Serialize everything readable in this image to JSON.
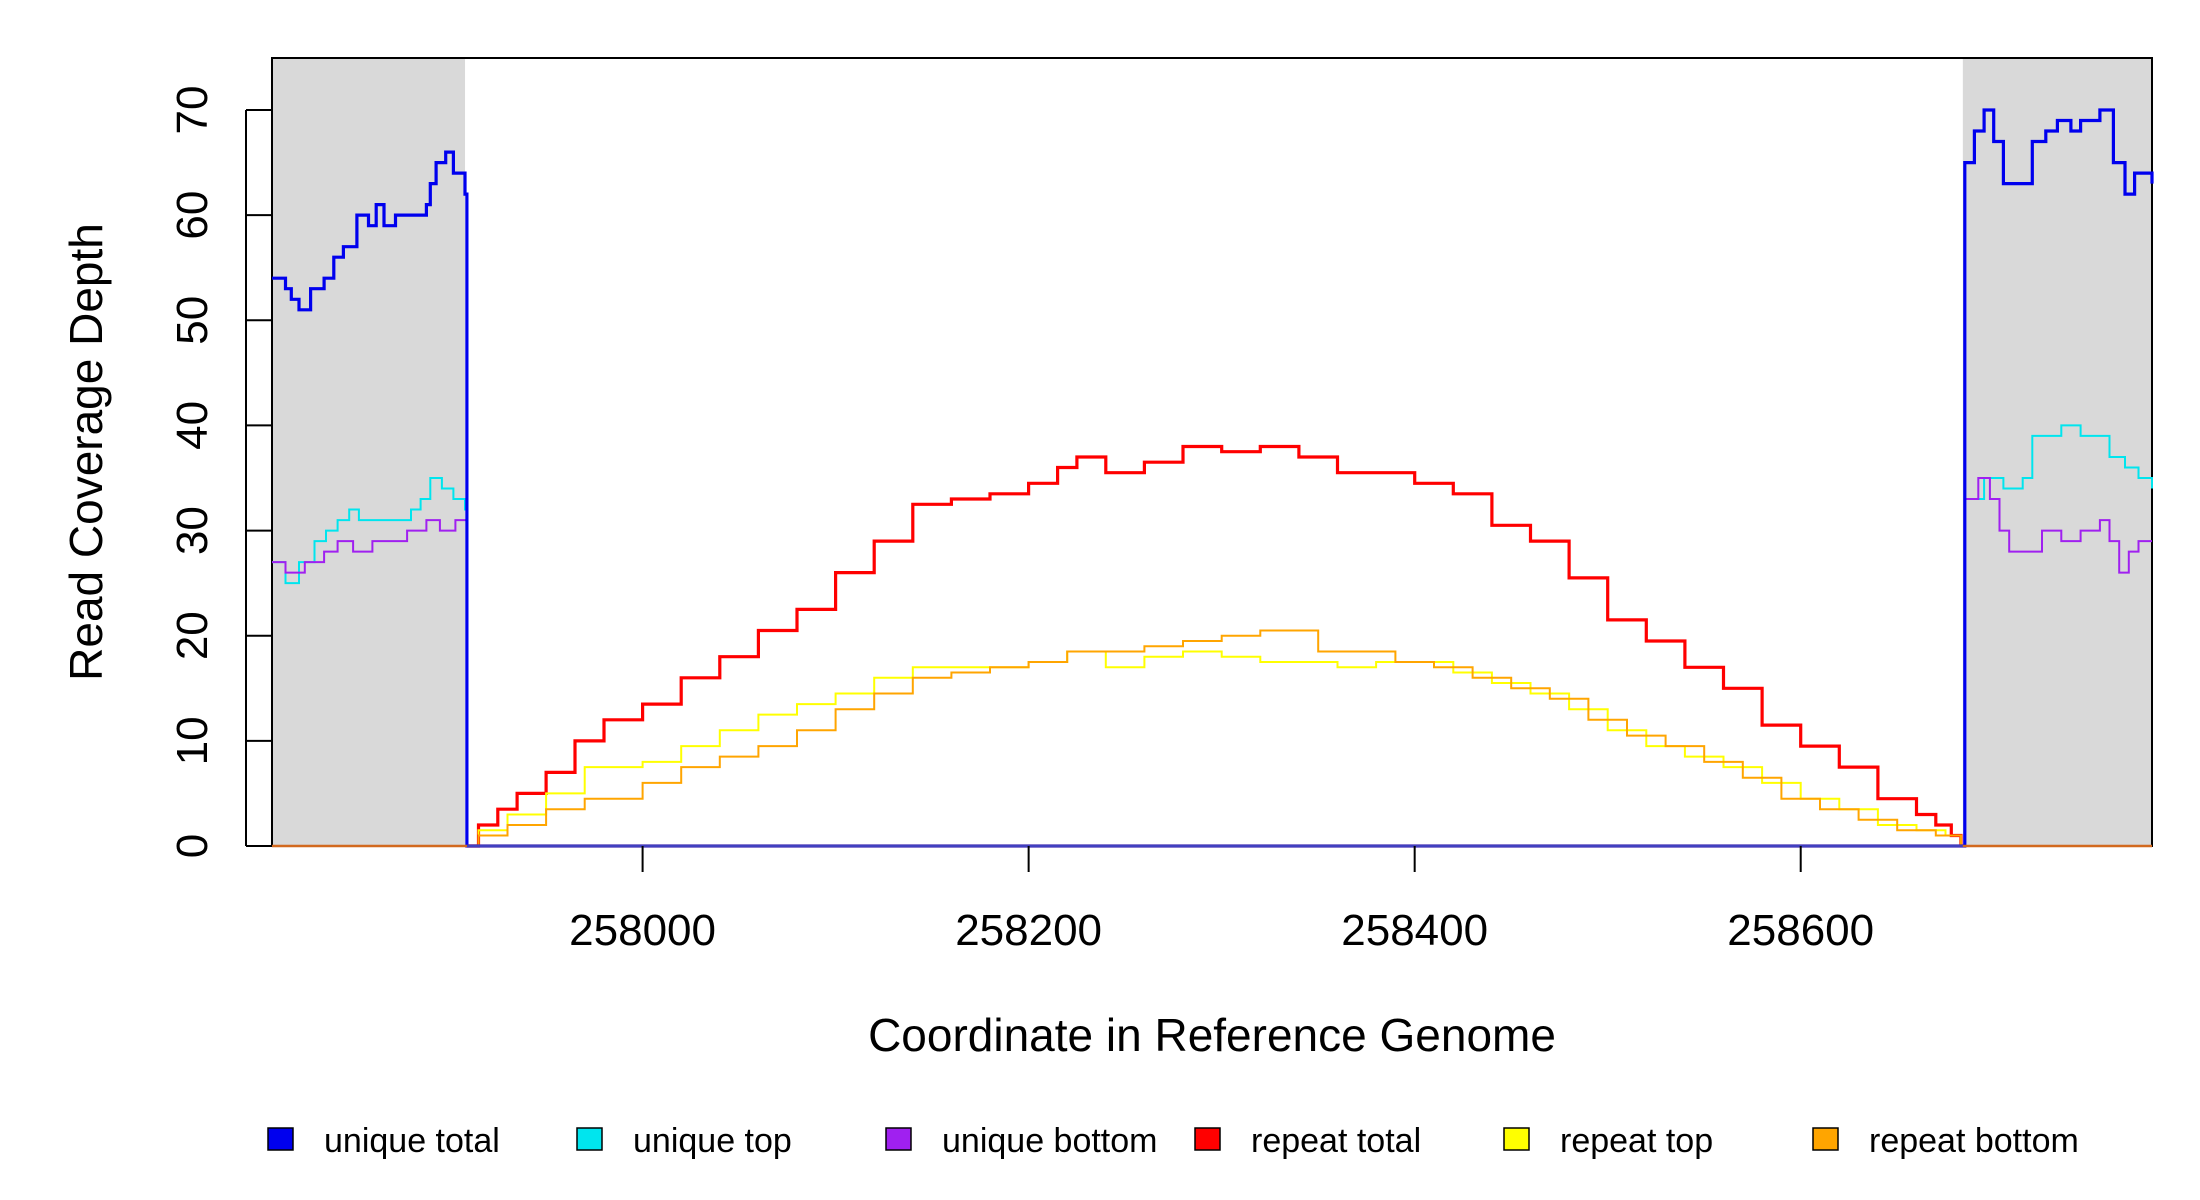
{
  "chart_data": {
    "type": "line",
    "title": "",
    "xlabel": "Coordinate in Reference Genome",
    "ylabel": "Read Coverage Depth",
    "xlim": [
      257808,
      258782
    ],
    "ylim": [
      0,
      75
    ],
    "x_ticks": [
      "258000",
      "258200",
      "258400",
      "258600"
    ],
    "x_tick_values": [
      258000,
      258200,
      258400,
      258600
    ],
    "y_ticks": [
      "0",
      "10",
      "20",
      "30",
      "40",
      "50",
      "60",
      "70"
    ],
    "y_tick_values": [
      0,
      10,
      20,
      30,
      40,
      50,
      60,
      70
    ],
    "grid": false,
    "legend_position": "bottom",
    "unique_regions": [
      [
        257808,
        257908
      ],
      [
        258684,
        258782
      ]
    ],
    "unique_region_color": "#d9d9d9",
    "series": [
      {
        "name": "unique total",
        "color": "#0000ee",
        "points": [
          [
            257808,
            54
          ],
          [
            257815,
            53
          ],
          [
            257818,
            52
          ],
          [
            257822,
            51
          ],
          [
            257828,
            53
          ],
          [
            257835,
            54
          ],
          [
            257840,
            56
          ],
          [
            257845,
            57
          ],
          [
            257852,
            60
          ],
          [
            257858,
            59
          ],
          [
            257862,
            61
          ],
          [
            257866,
            59
          ],
          [
            257872,
            60
          ],
          [
            257880,
            60
          ],
          [
            257888,
            61
          ],
          [
            257890,
            63
          ],
          [
            257893,
            65
          ],
          [
            257898,
            66
          ],
          [
            257902,
            64
          ],
          [
            257906,
            64
          ],
          [
            257908,
            62
          ],
          [
            257909,
            0
          ],
          [
            258684,
            0
          ],
          [
            258685,
            65
          ],
          [
            258690,
            68
          ],
          [
            258695,
            70
          ],
          [
            258700,
            67
          ],
          [
            258705,
            63
          ],
          [
            258715,
            63
          ],
          [
            258720,
            67
          ],
          [
            258727,
            68
          ],
          [
            258733,
            69
          ],
          [
            258740,
            68
          ],
          [
            258745,
            69
          ],
          [
            258755,
            70
          ],
          [
            258762,
            65
          ],
          [
            258768,
            62
          ],
          [
            258773,
            64
          ],
          [
            258782,
            63
          ]
        ]
      },
      {
        "name": "unique top",
        "color": "#00e5ee",
        "points": [
          [
            257808,
            27
          ],
          [
            257815,
            25
          ],
          [
            257822,
            27
          ],
          [
            257830,
            29
          ],
          [
            257836,
            30
          ],
          [
            257842,
            31
          ],
          [
            257848,
            32
          ],
          [
            257853,
            31
          ],
          [
            257862,
            31
          ],
          [
            257870,
            31
          ],
          [
            257880,
            32
          ],
          [
            257885,
            33
          ],
          [
            257890,
            35
          ],
          [
            257896,
            34
          ],
          [
            257902,
            33
          ],
          [
            257908,
            32
          ],
          [
            257909,
            0
          ],
          [
            258684,
            0
          ],
          [
            258685,
            33
          ],
          [
            258695,
            35
          ],
          [
            258705,
            34
          ],
          [
            258715,
            35
          ],
          [
            258720,
            39
          ],
          [
            258730,
            39
          ],
          [
            258735,
            40
          ],
          [
            258745,
            39
          ],
          [
            258752,
            39
          ],
          [
            258760,
            37
          ],
          [
            258768,
            36
          ],
          [
            258775,
            35
          ],
          [
            258782,
            34
          ]
        ]
      },
      {
        "name": "unique bottom",
        "color": "#a020f0",
        "points": [
          [
            257808,
            27
          ],
          [
            257815,
            26
          ],
          [
            257825,
            27
          ],
          [
            257835,
            28
          ],
          [
            257842,
            29
          ],
          [
            257850,
            28
          ],
          [
            257860,
            29
          ],
          [
            257870,
            29
          ],
          [
            257878,
            30
          ],
          [
            257884,
            30
          ],
          [
            257888,
            31
          ],
          [
            257895,
            30
          ],
          [
            257903,
            31
          ],
          [
            257908,
            31
          ],
          [
            257909,
            0
          ],
          [
            258684,
            0
          ],
          [
            258685,
            33
          ],
          [
            258692,
            35
          ],
          [
            258698,
            33
          ],
          [
            258703,
            30
          ],
          [
            258708,
            28
          ],
          [
            258715,
            28
          ],
          [
            258725,
            30
          ],
          [
            258735,
            29
          ],
          [
            258745,
            30
          ],
          [
            258755,
            31
          ],
          [
            258760,
            29
          ],
          [
            258765,
            26
          ],
          [
            258770,
            28
          ],
          [
            258775,
            29
          ],
          [
            258782,
            29
          ]
        ]
      },
      {
        "name": "repeat total",
        "color": "#ff0000",
        "points": [
          [
            257909,
            0
          ],
          [
            257915,
            2
          ],
          [
            257925,
            3.5
          ],
          [
            257935,
            5
          ],
          [
            257950,
            7
          ],
          [
            257965,
            10
          ],
          [
            257980,
            12
          ],
          [
            258000,
            13.5
          ],
          [
            258020,
            16
          ],
          [
            258040,
            18
          ],
          [
            258060,
            20.5
          ],
          [
            258080,
            22.5
          ],
          [
            258100,
            26
          ],
          [
            258120,
            29
          ],
          [
            258140,
            32.5
          ],
          [
            258160,
            33
          ],
          [
            258180,
            33.5
          ],
          [
            258200,
            34.5
          ],
          [
            258215,
            36
          ],
          [
            258225,
            37
          ],
          [
            258240,
            35.5
          ],
          [
            258260,
            36.5
          ],
          [
            258280,
            38
          ],
          [
            258300,
            37.5
          ],
          [
            258320,
            38
          ],
          [
            258340,
            37
          ],
          [
            258360,
            35.5
          ],
          [
            258380,
            35.5
          ],
          [
            258400,
            34.5
          ],
          [
            258420,
            33.5
          ],
          [
            258440,
            30.5
          ],
          [
            258460,
            29
          ],
          [
            258480,
            25.5
          ],
          [
            258500,
            21.5
          ],
          [
            258520,
            19.5
          ],
          [
            258540,
            17
          ],
          [
            258560,
            15
          ],
          [
            258580,
            11.5
          ],
          [
            258600,
            9.5
          ],
          [
            258620,
            7.5
          ],
          [
            258640,
            4.5
          ],
          [
            258660,
            3
          ],
          [
            258670,
            2
          ],
          [
            258678,
            1
          ],
          [
            258683,
            0
          ]
        ]
      },
      {
        "name": "repeat top",
        "color": "#ffff00",
        "points": [
          [
            257909,
            0
          ],
          [
            257915,
            1.5
          ],
          [
            257930,
            3
          ],
          [
            257950,
            5
          ],
          [
            257970,
            7.5
          ],
          [
            258000,
            8
          ],
          [
            258020,
            9.5
          ],
          [
            258040,
            11
          ],
          [
            258060,
            12.5
          ],
          [
            258080,
            13.5
          ],
          [
            258100,
            14.5
          ],
          [
            258120,
            16
          ],
          [
            258140,
            17
          ],
          [
            258160,
            17
          ],
          [
            258180,
            17
          ],
          [
            258200,
            17.5
          ],
          [
            258220,
            18.5
          ],
          [
            258240,
            17
          ],
          [
            258260,
            18
          ],
          [
            258280,
            18.5
          ],
          [
            258300,
            18
          ],
          [
            258320,
            17.5
          ],
          [
            258340,
            17.5
          ],
          [
            258360,
            17
          ],
          [
            258380,
            17.5
          ],
          [
            258400,
            17.5
          ],
          [
            258420,
            16.5
          ],
          [
            258440,
            15.5
          ],
          [
            258460,
            14.5
          ],
          [
            258480,
            13
          ],
          [
            258500,
            11
          ],
          [
            258520,
            9.5
          ],
          [
            258540,
            8.5
          ],
          [
            258560,
            7.5
          ],
          [
            258580,
            6
          ],
          [
            258600,
            4.5
          ],
          [
            258620,
            3.5
          ],
          [
            258640,
            2
          ],
          [
            258660,
            1.5
          ],
          [
            258675,
            1
          ],
          [
            258683,
            0
          ]
        ]
      },
      {
        "name": "repeat bottom",
        "color": "#ffa500",
        "points": [
          [
            257909,
            0
          ],
          [
            257915,
            1
          ],
          [
            257930,
            2
          ],
          [
            257950,
            3.5
          ],
          [
            257970,
            4.5
          ],
          [
            258000,
            6
          ],
          [
            258020,
            7.5
          ],
          [
            258040,
            8.5
          ],
          [
            258060,
            9.5
          ],
          [
            258080,
            11
          ],
          [
            258100,
            13
          ],
          [
            258120,
            14.5
          ],
          [
            258140,
            16
          ],
          [
            258160,
            16.5
          ],
          [
            258180,
            17
          ],
          [
            258200,
            17.5
          ],
          [
            258220,
            18.5
          ],
          [
            258240,
            18.5
          ],
          [
            258260,
            19
          ],
          [
            258280,
            19.5
          ],
          [
            258300,
            20
          ],
          [
            258320,
            20.5
          ],
          [
            258335,
            20.5
          ],
          [
            258350,
            18.5
          ],
          [
            258370,
            18.5
          ],
          [
            258390,
            17.5
          ],
          [
            258410,
            17
          ],
          [
            258430,
            16
          ],
          [
            258450,
            15
          ],
          [
            258470,
            14
          ],
          [
            258490,
            12
          ],
          [
            258510,
            10.5
          ],
          [
            258530,
            9.5
          ],
          [
            258550,
            8
          ],
          [
            258570,
            6.5
          ],
          [
            258590,
            4.5
          ],
          [
            258610,
            3.5
          ],
          [
            258630,
            2.5
          ],
          [
            258650,
            1.5
          ],
          [
            258670,
            1
          ],
          [
            258683,
            0
          ]
        ]
      }
    ]
  },
  "legend": {
    "items": [
      {
        "label": "unique total",
        "color": "#0000ee"
      },
      {
        "label": "unique top",
        "color": "#00e5ee"
      },
      {
        "label": "unique bottom",
        "color": "#a020f0"
      },
      {
        "label": "repeat total",
        "color": "#ff0000"
      },
      {
        "label": "repeat top",
        "color": "#ffff00"
      },
      {
        "label": "repeat bottom",
        "color": "#ffa500"
      }
    ]
  }
}
